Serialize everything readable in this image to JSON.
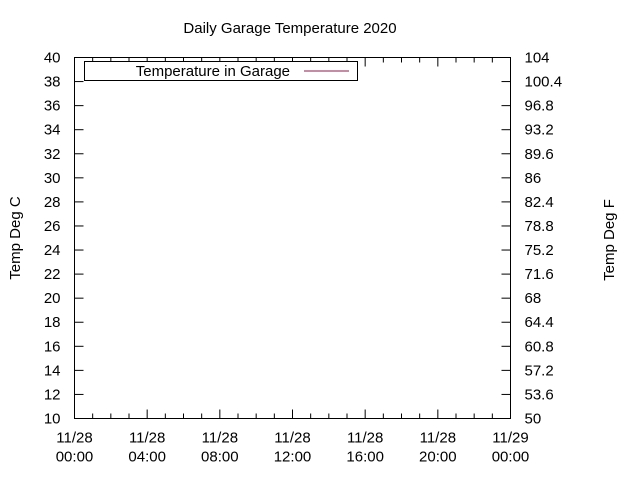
{
  "chart_data": {
    "type": "line",
    "title": "Daily Garage Temperature 2020",
    "ylabel": "Temp Deg C",
    "y2label": "Temp Deg F",
    "xlabel": "",
    "ylim": [
      10,
      40
    ],
    "y2lim": [
      50,
      104
    ],
    "y_ticks": [
      10,
      12,
      14,
      16,
      18,
      20,
      22,
      24,
      26,
      28,
      30,
      32,
      34,
      36,
      38,
      40
    ],
    "y2_ticks": [
      "50",
      "53.6",
      "57.2",
      "60.8",
      "64.4",
      "68",
      "71.6",
      "75.2",
      "78.8",
      "82.4",
      "86",
      "89.6",
      "93.2",
      "96.8",
      "100.4",
      "104"
    ],
    "x_ticks": [
      {
        "date": "11/28",
        "time": "00:00"
      },
      {
        "date": "11/28",
        "time": "04:00"
      },
      {
        "date": "11/28",
        "time": "08:00"
      },
      {
        "date": "11/28",
        "time": "12:00"
      },
      {
        "date": "11/28",
        "time": "16:00"
      },
      {
        "date": "11/28",
        "time": "20:00"
      },
      {
        "date": "11/29",
        "time": "00:00"
      }
    ],
    "xlim": [
      "11/28 00:00",
      "11/29 00:00"
    ],
    "legend_placement": "top-left",
    "grid": false,
    "series": [
      {
        "name": "Temperature in Garage",
        "color": "#8b1a4a",
        "points": []
      }
    ]
  }
}
